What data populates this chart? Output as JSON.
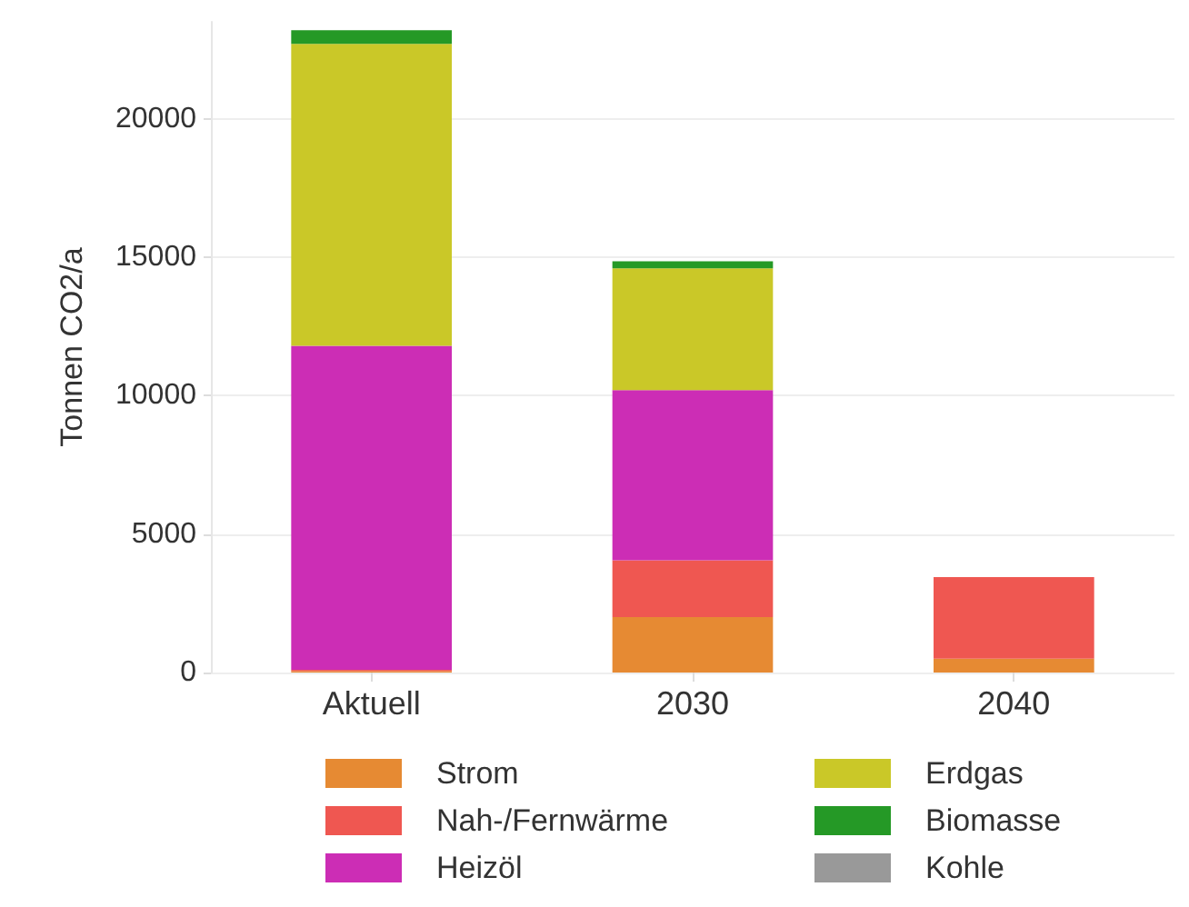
{
  "chart_data": {
    "type": "bar",
    "stacked": true,
    "ylabel": "Tonnen CO2/a",
    "categories": [
      "Aktuell",
      "2030",
      "2040"
    ],
    "series": [
      {
        "name": "Strom",
        "color": "#e68a33",
        "values": [
          50,
          2000,
          500
        ]
      },
      {
        "name": "Nah-/Fernwärme",
        "color": "#ef5751",
        "values": [
          50,
          2050,
          2950
        ]
      },
      {
        "name": "Heizöl",
        "color": "#cc2db5",
        "values": [
          11700,
          6150,
          0
        ]
      },
      {
        "name": "Erdgas",
        "color": "#cac828",
        "values": [
          10900,
          4400,
          0
        ]
      },
      {
        "name": "Biomasse",
        "color": "#259926",
        "values": [
          500,
          250,
          0
        ]
      },
      {
        "name": "Kohle",
        "color": "#999999",
        "values": [
          0,
          0,
          0
        ]
      }
    ],
    "ylim": [
      0,
      23500
    ],
    "yticks": [
      0,
      5000,
      10000,
      15000,
      20000
    ],
    "grid": "y",
    "legend": "bottom"
  }
}
